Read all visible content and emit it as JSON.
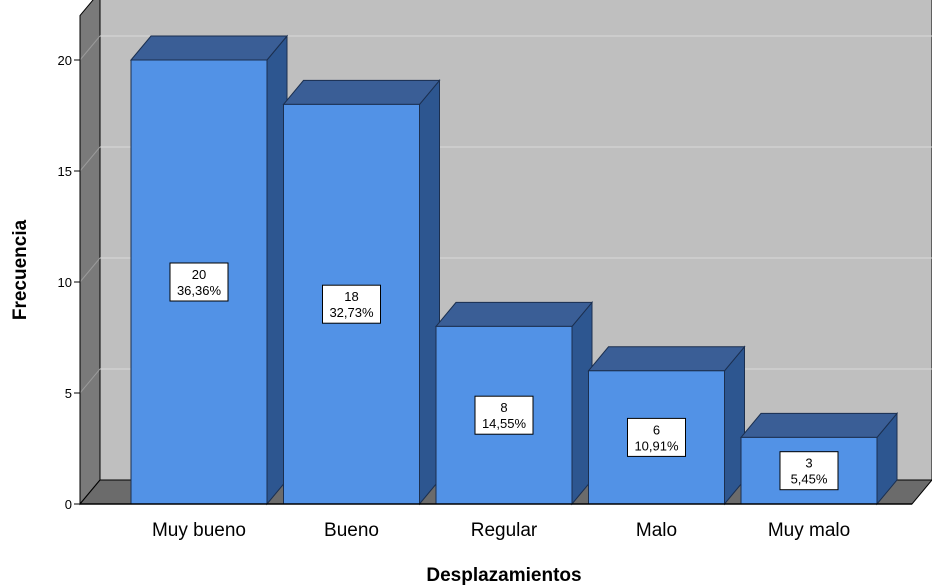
{
  "chart_data": {
    "type": "bar",
    "categories": [
      "Muy  bueno",
      "Bueno",
      "Regular",
      "Malo",
      "Muy malo"
    ],
    "values": [
      20,
      18,
      8,
      6,
      3
    ],
    "percent_labels": [
      "36,36%",
      "32,73%",
      "14,55%",
      "10,91%",
      "5,45%"
    ],
    "xlabel": "Desplazamientos",
    "ylabel": "Frecuencia",
    "ylim": [
      0,
      22
    ],
    "yticks": [
      0,
      5,
      10,
      15,
      20
    ],
    "grid": true,
    "three_d": true,
    "colors": {
      "bar_front": "#5292e6",
      "bar_top": "#3a5e96",
      "bar_side": "#2d5690",
      "plot_back": "#bfbfbf",
      "plot_floor": "#6b6b6b",
      "plot_wall": "#7a7a7a",
      "gridline": "#d9d9d9"
    }
  }
}
